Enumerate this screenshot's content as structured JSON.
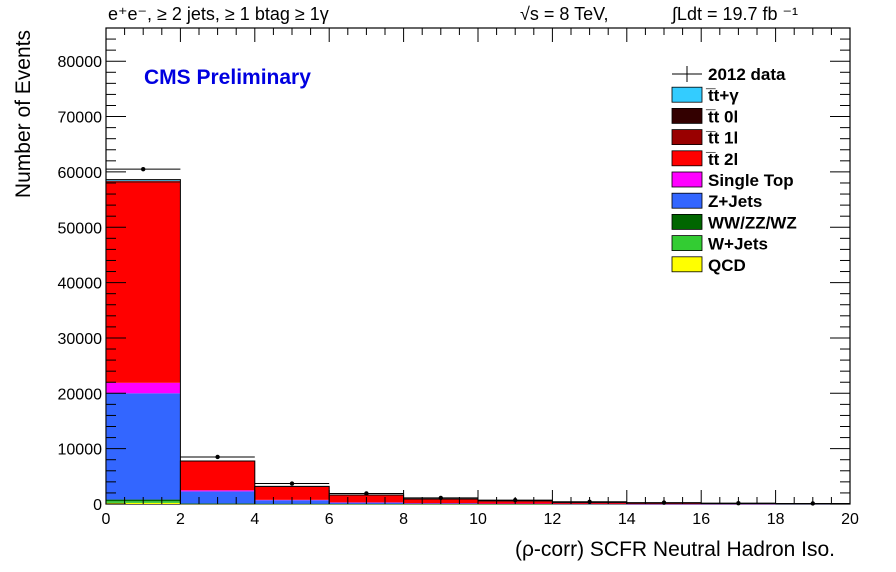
{
  "header": {
    "channel": "e⁺e⁻, ≥ 2 jets, ≥ 1 btag ≥ 1γ",
    "energy": "√s = 8 TeV,",
    "lumi": "∫Ldt = 19.7 fb ⁻¹"
  },
  "chart_data": {
    "type": "bar",
    "stacked": true,
    "title": "",
    "label": "CMS Preliminary",
    "xlabel": "(ρ-corr) SCFR Neutral Hadron Iso.",
    "ylabel": "Number of Events",
    "xlim": [
      0,
      20
    ],
    "ylim": [
      0,
      86000
    ],
    "xticks": [
      0,
      2,
      4,
      6,
      8,
      10,
      12,
      14,
      16,
      18,
      20
    ],
    "yticks": [
      0,
      10000,
      20000,
      30000,
      40000,
      50000,
      60000,
      70000,
      80000
    ],
    "bin_edges": [
      0,
      2,
      4,
      6,
      8,
      10,
      12,
      14,
      16,
      18,
      20
    ],
    "legend_position": "top-right",
    "series": [
      {
        "name": "QCD",
        "color": "#ffff00",
        "values": [
          200,
          20,
          10,
          5,
          2,
          1,
          0,
          0,
          0,
          0
        ]
      },
      {
        "name": "W+Jets",
        "color": "#33cc33",
        "values": [
          300,
          30,
          10,
          5,
          3,
          2,
          1,
          0,
          0,
          0
        ]
      },
      {
        "name": "WW/ZZ/WZ",
        "color": "#006600",
        "values": [
          300,
          30,
          10,
          5,
          3,
          2,
          1,
          0,
          0,
          0
        ]
      },
      {
        "name": "Z+Jets",
        "color": "#3366ff",
        "values": [
          19200,
          2200,
          650,
          250,
          120,
          60,
          30,
          15,
          8,
          5
        ]
      },
      {
        "name": "Single Top",
        "color": "#ff00ff",
        "values": [
          1900,
          200,
          70,
          30,
          15,
          8,
          4,
          2,
          1,
          0
        ]
      },
      {
        "name": "t̅t 2l",
        "color": "#ff0000",
        "values": [
          36100,
          5200,
          2400,
          1300,
          750,
          480,
          250,
          130,
          70,
          40
        ]
      },
      {
        "name": "t̅t 1l",
        "color": "#990000",
        "values": [
          300,
          50,
          20,
          10,
          5,
          3,
          2,
          1,
          0,
          0
        ]
      },
      {
        "name": "t̅t 0l",
        "color": "#330000",
        "values": [
          100,
          10,
          5,
          2,
          1,
          0,
          0,
          0,
          0,
          0
        ]
      },
      {
        "name": "t̅t+γ",
        "color": "#33ccff",
        "values": [
          200,
          30,
          15,
          8,
          4,
          2,
          1,
          0,
          0,
          0
        ]
      }
    ],
    "data": {
      "name": "2012 data",
      "x": [
        1,
        3,
        5,
        7,
        9,
        11,
        13,
        15,
        17,
        19
      ],
      "y": [
        60500,
        8500,
        3700,
        1900,
        1100,
        700,
        400,
        250,
        150,
        100
      ]
    }
  }
}
